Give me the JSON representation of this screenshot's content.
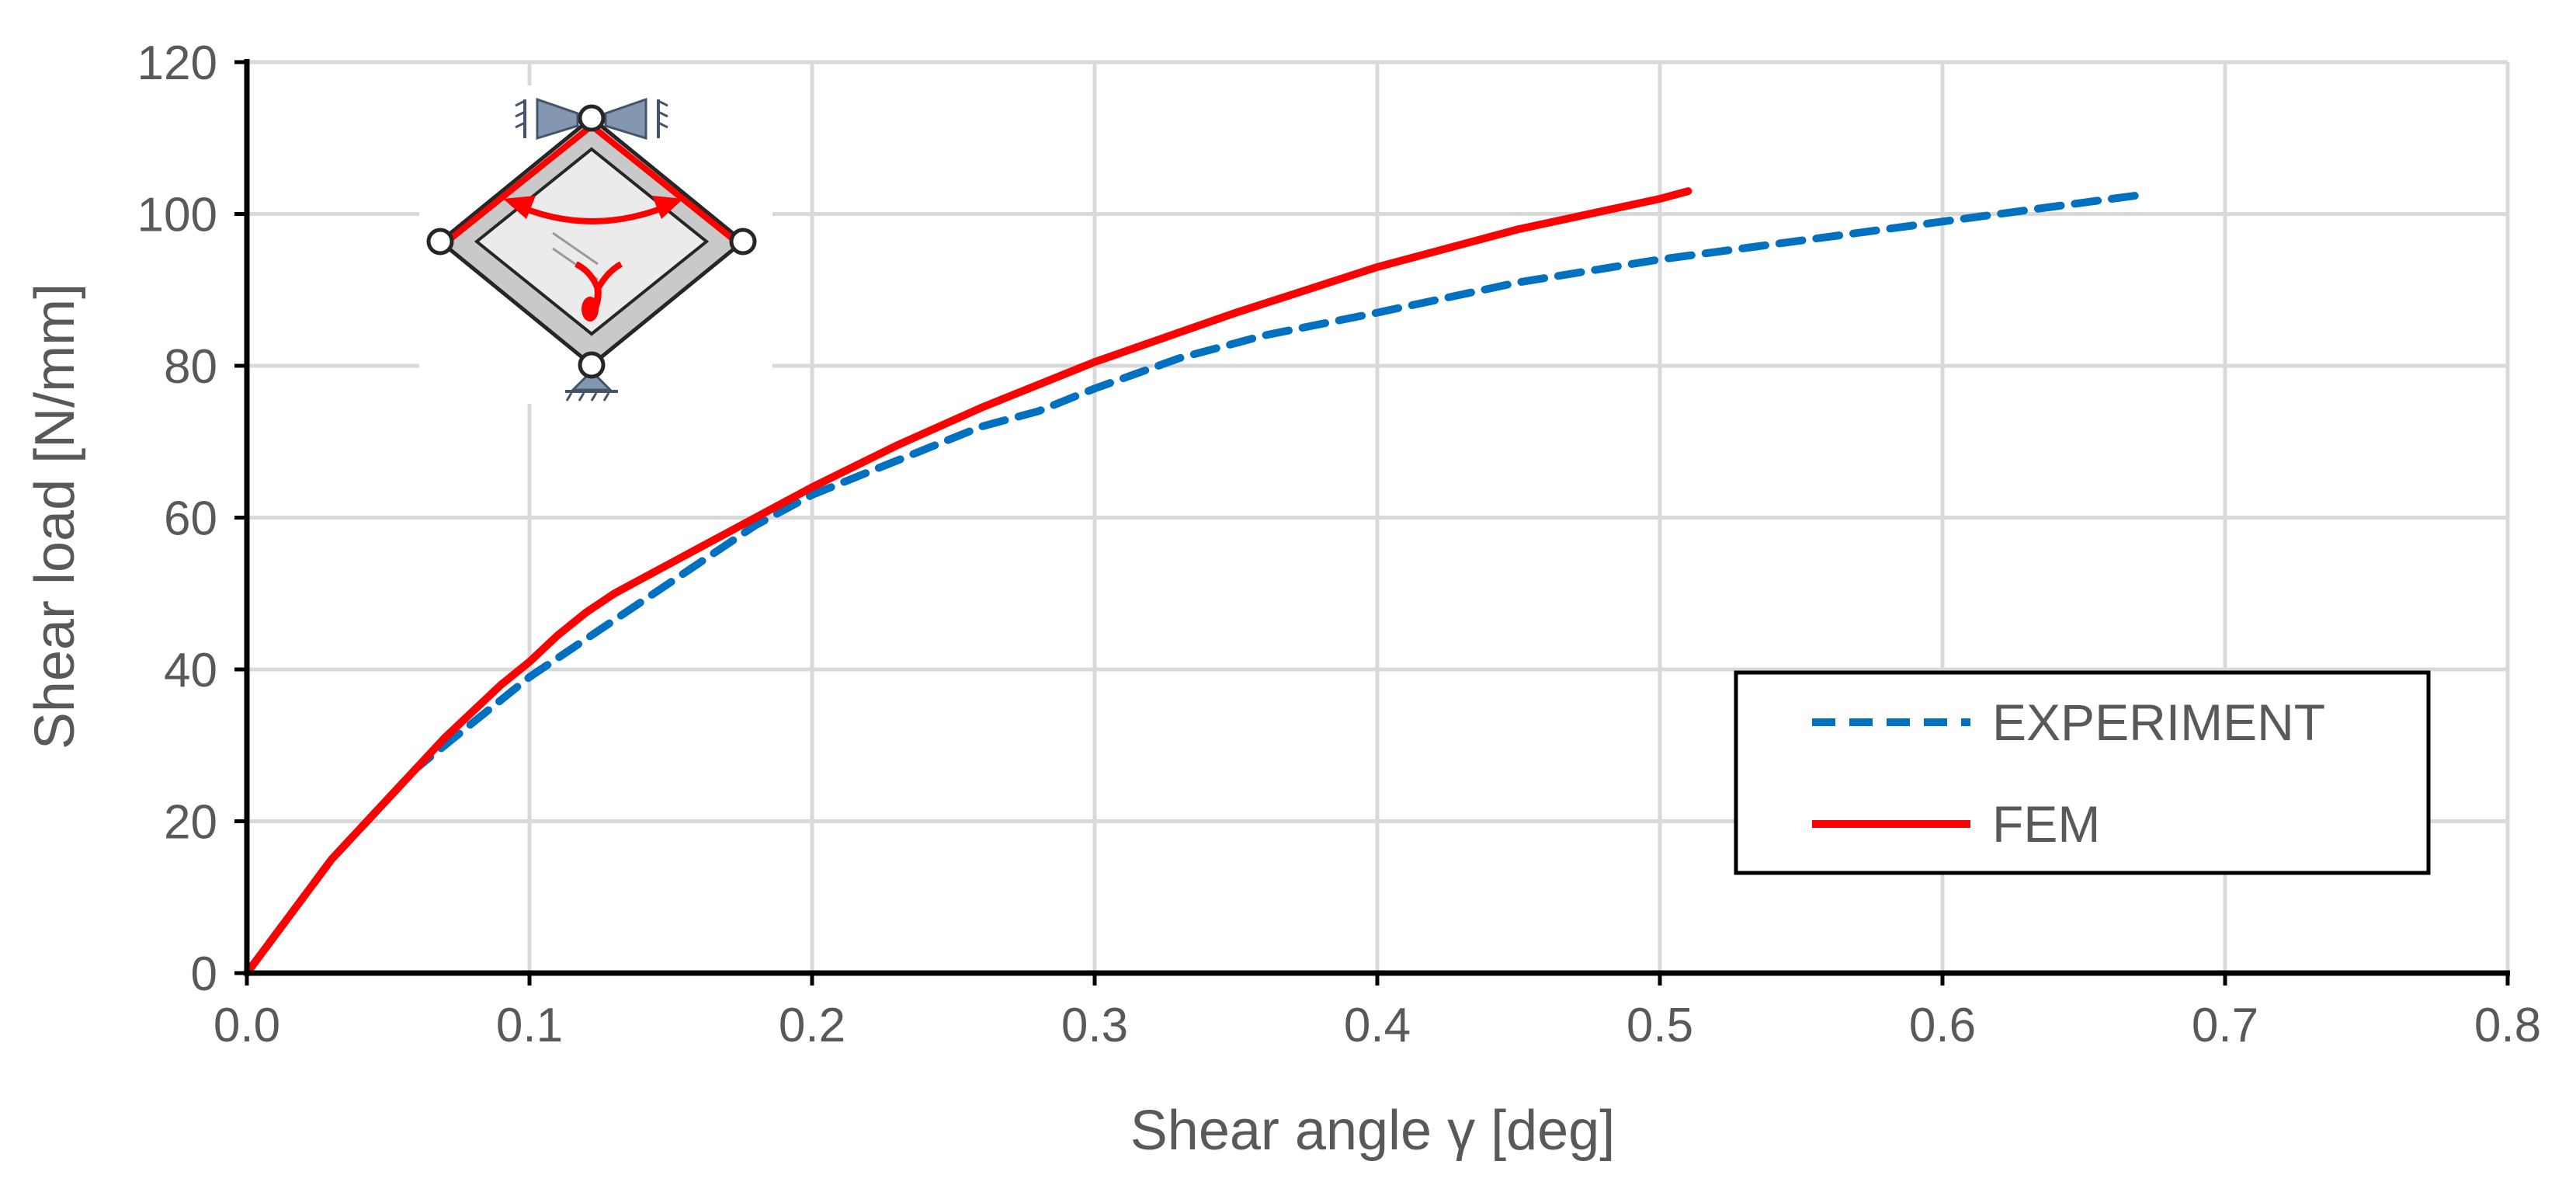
{
  "chart_data": {
    "type": "line",
    "xlabel": "Shear angle γ [deg]",
    "ylabel": "Shear load [N/mm]",
    "xlim": [
      0,
      0.8
    ],
    "ylim": [
      0,
      120
    ],
    "x_ticks": [
      "0.0",
      "0.1",
      "0.2",
      "0.3",
      "0.4",
      "0.5",
      "0.6",
      "0.7",
      "0.8"
    ],
    "y_ticks": [
      "0",
      "20",
      "40",
      "60",
      "80",
      "100",
      "120"
    ],
    "grid": true,
    "legend_position": "bottom-right",
    "series": [
      {
        "name": "EXPERIMENT",
        "color": "#0070C0",
        "style": "dashed",
        "x": [
          0,
          0.01,
          0.02,
          0.03,
          0.04,
          0.05,
          0.06,
          0.07,
          0.08,
          0.09,
          0.1,
          0.12,
          0.14,
          0.16,
          0.18,
          0.2,
          0.22,
          0.24,
          0.26,
          0.28,
          0.3,
          0.33,
          0.36,
          0.4,
          0.45,
          0.5,
          0.55,
          0.6,
          0.65,
          0.67
        ],
        "y": [
          0,
          5,
          10,
          15,
          19,
          23,
          27,
          30,
          33,
          36,
          39,
          44,
          49,
          54,
          59,
          63,
          66,
          69,
          72,
          74,
          77,
          81,
          84,
          87,
          91,
          94,
          96.5,
          99,
          101.5,
          102.5
        ]
      },
      {
        "name": "FEM",
        "color": "#FF0000",
        "style": "solid",
        "x": [
          0,
          0.01,
          0.02,
          0.03,
          0.04,
          0.05,
          0.06,
          0.07,
          0.08,
          0.09,
          0.1,
          0.11,
          0.12,
          0.13,
          0.15,
          0.17,
          0.2,
          0.23,
          0.26,
          0.3,
          0.35,
          0.4,
          0.45,
          0.5,
          0.51
        ],
        "y": [
          0,
          5,
          10,
          15,
          19,
          23,
          27,
          31,
          34.5,
          38,
          41,
          44.5,
          47.5,
          50,
          54,
          58,
          64,
          69.5,
          74.5,
          80.5,
          87,
          93,
          98,
          102,
          103
        ]
      }
    ]
  }
}
